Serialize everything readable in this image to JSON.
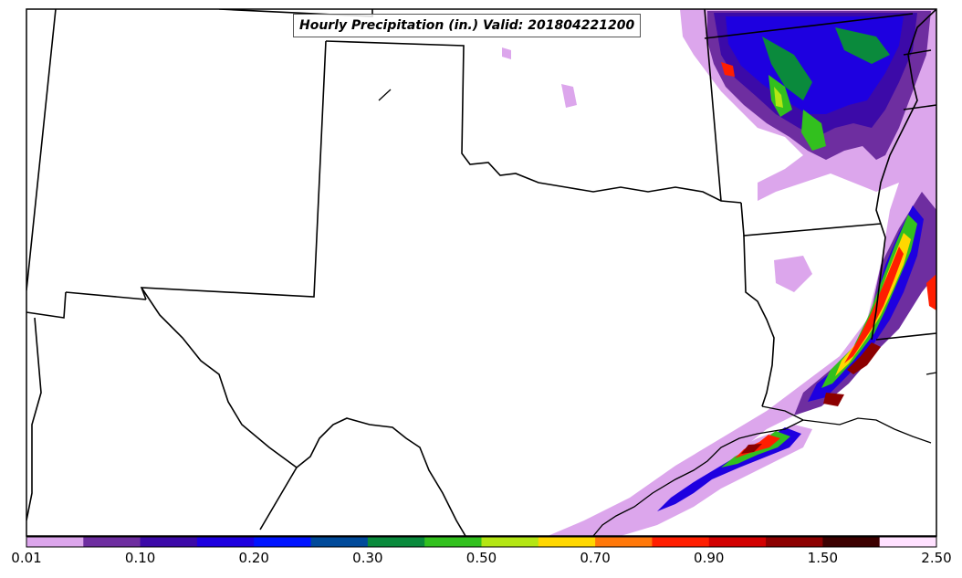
{
  "title": "Hourly Precipitation (in.) Valid: 201804221200",
  "colorbar": {
    "colors": [
      "#dca6ec",
      "#6e2ea0",
      "#3c0aa8",
      "#1e00e0",
      "#0014ff",
      "#004a9a",
      "#0a8a3c",
      "#32c01e",
      "#b4e614",
      "#ffd700",
      "#ff780a",
      "#ff1e00",
      "#d20000",
      "#8c0000",
      "#3c0000",
      "#ffe1ff"
    ],
    "tick_labels": [
      "0.01",
      "0.10",
      "0.20",
      "0.30",
      "0.50",
      "0.70",
      "0.90",
      "1.50",
      "2.50"
    ]
  }
}
